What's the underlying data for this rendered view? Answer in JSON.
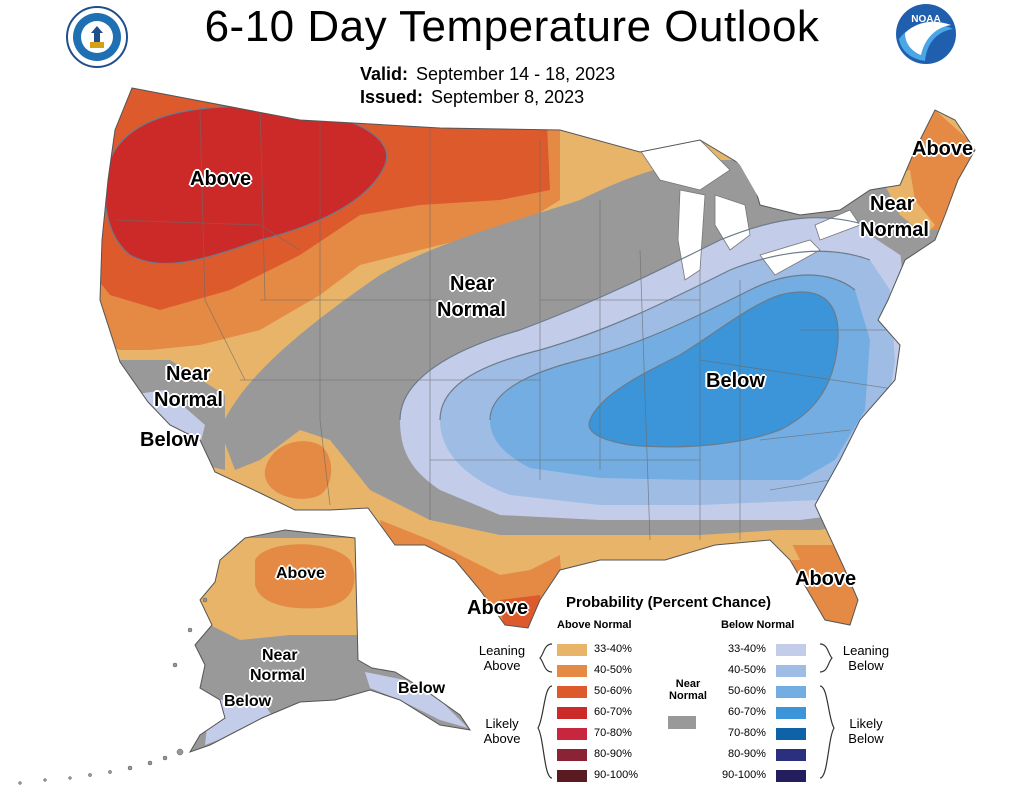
{
  "title": "6-10 Day Temperature Outlook",
  "valid_label": "Valid:",
  "valid_value": "September 14 - 18, 2023",
  "issued_label": "Issued:",
  "issued_value": "September 8, 2023",
  "logos": {
    "left": "department-of-commerce-seal",
    "right": "noaa-logo",
    "noaa_text": "NOAA"
  },
  "map_labels": {
    "nw_above": "Above",
    "ne_above": "Above",
    "ne_near1": "Near",
    "ne_near2": "Normal",
    "plains_near1": "Near",
    "plains_near2": "Normal",
    "ca_near1": "Near",
    "ca_near2": "Normal",
    "ca_below": "Below",
    "se_below": "Below",
    "fl_above": "Above",
    "tx_above": "Above",
    "ak_above": "Above",
    "ak_near1": "Near",
    "ak_near2": "Normal",
    "ak_below_w": "Below",
    "ak_below_se": "Below"
  },
  "legend": {
    "title": "Probability (Percent Chance)",
    "above_heading": "Above Normal",
    "below_heading": "Below Normal",
    "near_heading1": "Near",
    "near_heading2": "Normal",
    "leaning_above": [
      "Leaning",
      "Above"
    ],
    "likely_above": [
      "Likely",
      "Above"
    ],
    "leaning_below": [
      "Leaning",
      "Below"
    ],
    "likely_below": [
      "Likely",
      "Below"
    ],
    "above": [
      {
        "range": "33-40%",
        "color": "#e8b46a"
      },
      {
        "range": "40-50%",
        "color": "#e58a45"
      },
      {
        "range": "50-60%",
        "color": "#dd5a2d"
      },
      {
        "range": "60-70%",
        "color": "#cc2a28"
      },
      {
        "range": "70-80%",
        "color": "#c8253f"
      },
      {
        "range": "80-90%",
        "color": "#8b2335"
      },
      {
        "range": "90-100%",
        "color": "#5a1a22"
      }
    ],
    "below": [
      {
        "range": "33-40%",
        "color": "#c3cde9"
      },
      {
        "range": "40-50%",
        "color": "#9fbde4"
      },
      {
        "range": "50-60%",
        "color": "#73ade2"
      },
      {
        "range": "60-70%",
        "color": "#3b95d8"
      },
      {
        "range": "70-80%",
        "color": "#0e63a8"
      },
      {
        "range": "80-90%",
        "color": "#2a2f7e"
      },
      {
        "range": "90-100%",
        "color": "#241f5c"
      }
    ],
    "near_color": "#999999"
  }
}
